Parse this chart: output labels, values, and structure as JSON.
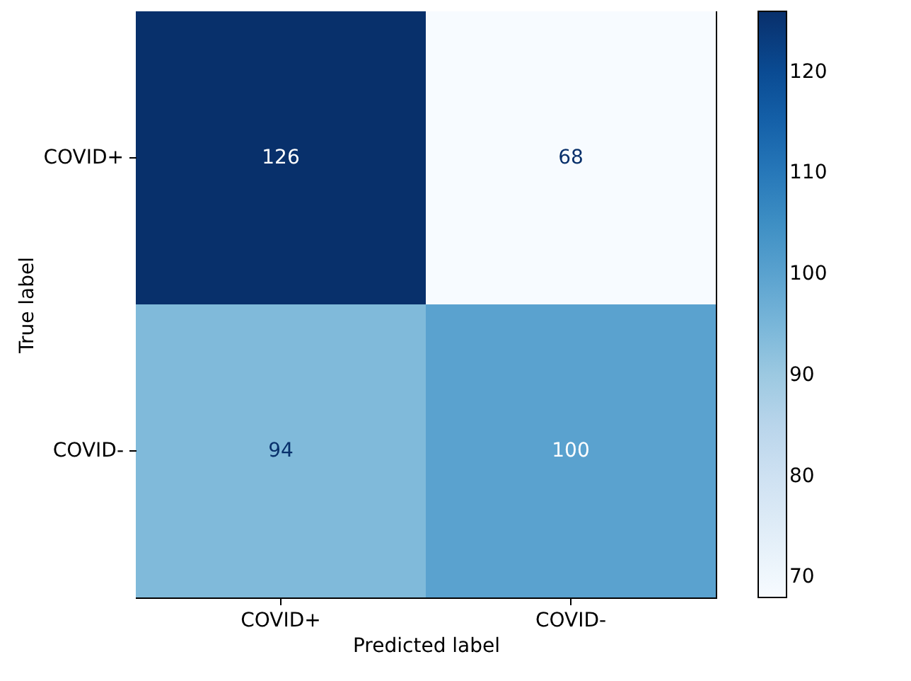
{
  "chart_data": {
    "type": "heatmap",
    "xlabel": "Predicted label",
    "ylabel": "True label",
    "categories": [
      "COVID+",
      "COVID-"
    ],
    "y_categories": [
      "COVID+",
      "COVID-"
    ],
    "cells": [
      [
        126,
        68
      ],
      [
        94,
        100
      ]
    ],
    "data_labels": true,
    "clim": [
      68,
      126
    ],
    "cticks": [
      70,
      80,
      90,
      100,
      110,
      120
    ]
  }
}
